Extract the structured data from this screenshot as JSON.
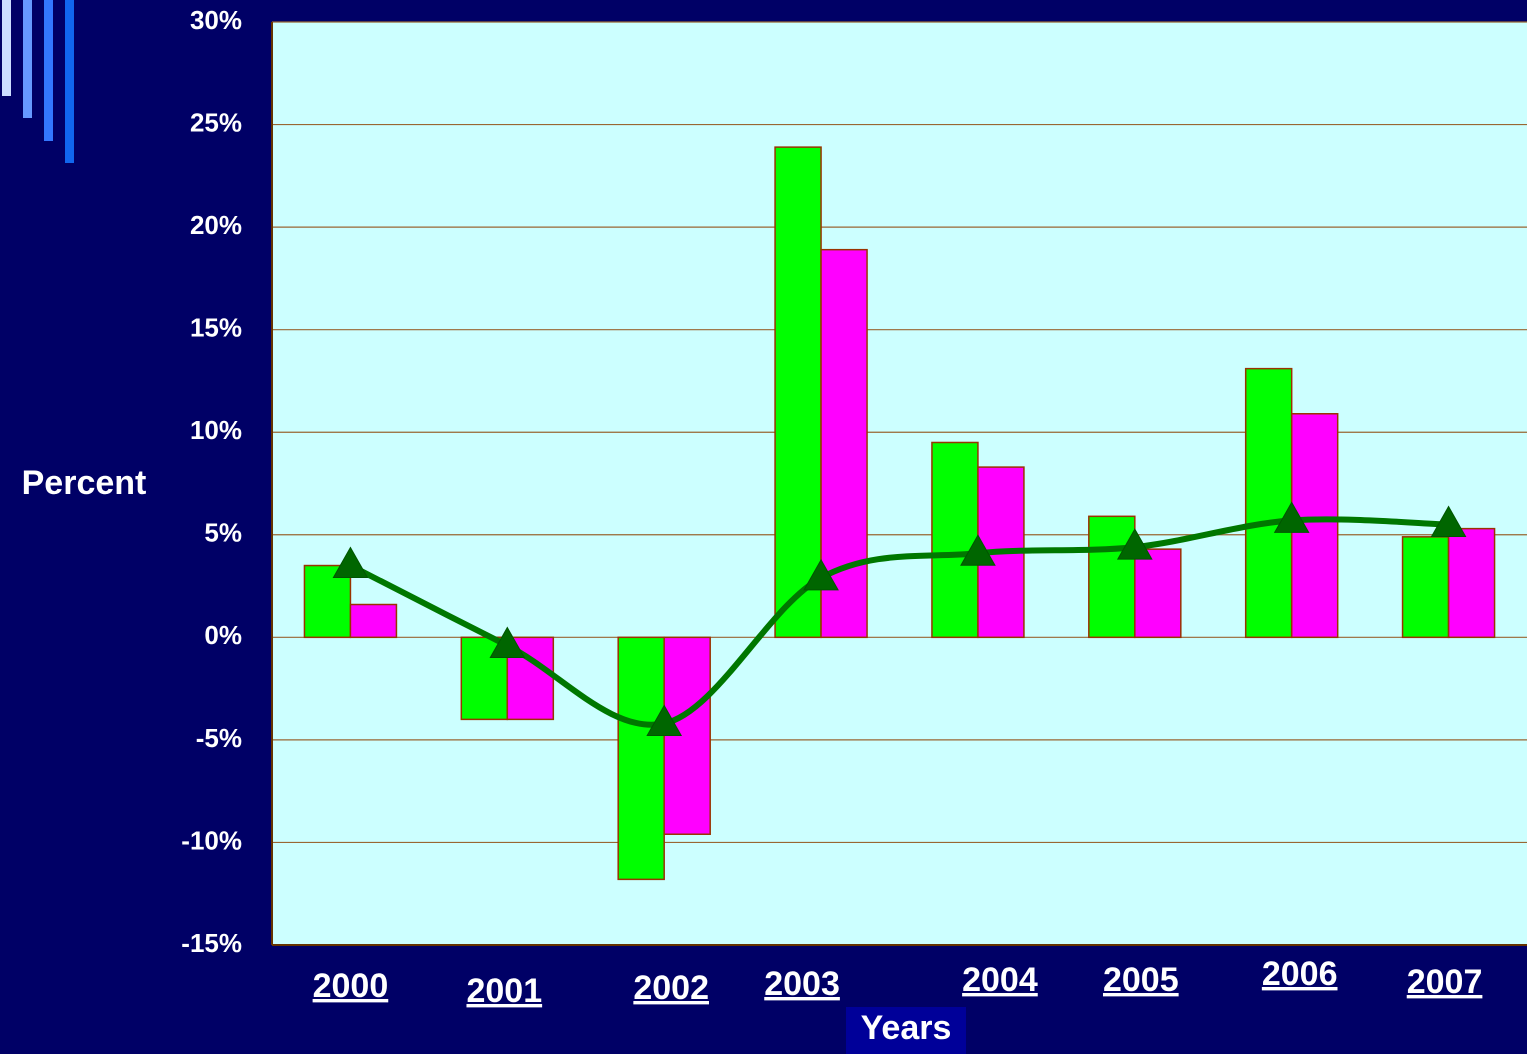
{
  "chart_data": {
    "type": "bar",
    "categories": [
      "2000",
      "2001",
      "2002",
      "2003",
      "2004",
      "2005",
      "2006",
      "2007"
    ],
    "series": [
      {
        "type": "bar",
        "color": "#00ff00",
        "values": [
          3.5,
          -4,
          -11.8,
          23.9,
          9.5,
          5.9,
          13.1,
          4.9
        ]
      },
      {
        "type": "bar",
        "color": "#ff00ff",
        "values": [
          1.6,
          -4,
          -9.6,
          18.9,
          8.3,
          4.3,
          10.9,
          5.3
        ]
      },
      {
        "type": "line",
        "color": "#007700",
        "values": [
          3.5,
          -0.4,
          -4.2,
          2.9,
          4.1,
          4.4,
          5.7,
          5.5
        ]
      }
    ],
    "y_label": "Percent",
    "x_label": "Years",
    "ylim": [
      -15,
      30
    ],
    "yticks": [
      {
        "value": -15,
        "label": "-15%"
      },
      {
        "value": -10,
        "label": "-10%"
      },
      {
        "value": -5,
        "label": "-5%"
      },
      {
        "value": 0,
        "label": "0%"
      },
      {
        "value": 5,
        "label": "5%"
      },
      {
        "value": 10,
        "label": "10%"
      },
      {
        "value": 15,
        "label": "15%"
      },
      {
        "value": 20,
        "label": "20%"
      },
      {
        "value": 25,
        "label": "25%"
      },
      {
        "value": 30,
        "label": "30%"
      }
    ],
    "grid": true
  }
}
